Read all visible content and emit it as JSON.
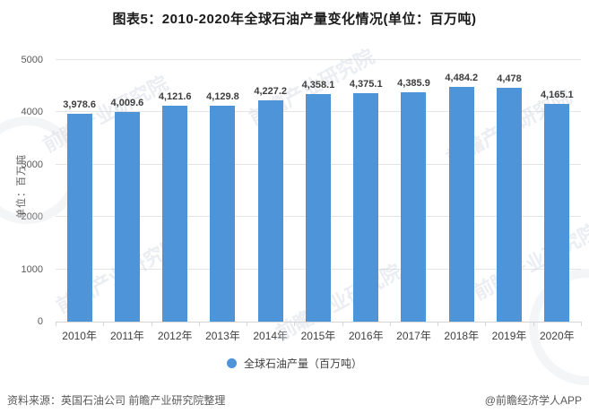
{
  "title": "图表5：2010-2020年全球石油产量变化情况(单位：百万吨)",
  "chart_data": {
    "type": "bar",
    "categories": [
      "2010年",
      "2011年",
      "2012年",
      "2013年",
      "2014年",
      "2015年",
      "2016年",
      "2017年",
      "2018年",
      "2019年",
      "2020年"
    ],
    "values": [
      3978.6,
      4009.6,
      4121.6,
      4129.8,
      4227.2,
      4358.1,
      4375.1,
      4385.9,
      4484.2,
      4478,
      4165.1
    ],
    "value_labels": [
      "3,978.6",
      "4,009.6",
      "4,121.6",
      "4,129.8",
      "4,227.2",
      "4,358.1",
      "4,375.1",
      "4,385.9",
      "4,484.2",
      "4,478",
      "4,165.1"
    ],
    "title": "图表5：2010-2020年全球石油产量变化情况(单位：百万吨)",
    "xlabel": "",
    "ylabel": "单位：百万吨",
    "ylim": [
      0,
      5000
    ],
    "yticks": [
      0,
      1000,
      2000,
      3000,
      4000,
      5000
    ],
    "grid": "on",
    "bar_color": "#4D94D9",
    "legend_position": "bottom",
    "legend": {
      "label": "全球石油产量（百万吨）",
      "color": "#4D94D9"
    }
  },
  "footer": {
    "source": "资料来源：英国石油公司 前瞻产业研究院整理",
    "credit": "@前瞻经济学人APP"
  },
  "watermark": {
    "text": "前瞻产业研究院"
  }
}
